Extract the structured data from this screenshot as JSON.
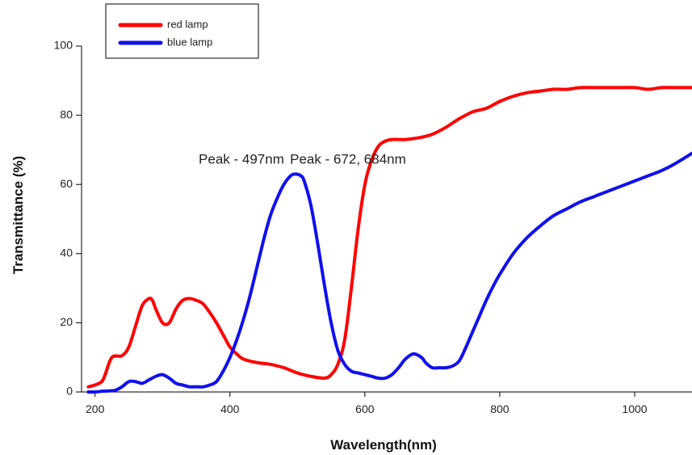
{
  "chart_data": {
    "type": "line",
    "xlabel": "Wavelength(nm)",
    "ylabel": "Transmittance (%)",
    "xlim": [
      180,
      1085
    ],
    "ylim": [
      0,
      100
    ],
    "x_ticks": [
      200,
      400,
      600,
      800,
      1000
    ],
    "y_ticks": [
      0,
      20,
      40,
      60,
      80,
      100
    ],
    "grid": false,
    "legend_position": "top-left",
    "annotations": [
      {
        "text": "Peak - 497nm",
        "x": 417,
        "y": 66
      },
      {
        "text": "Peak - 672, 684nm",
        "x": 575,
        "y": 66
      }
    ],
    "series": [
      {
        "name": "red lamp",
        "color": "#ff0000",
        "x": [
          190,
          200,
          210,
          215,
          225,
          240,
          250,
          260,
          270,
          280,
          285,
          290,
          300,
          310,
          320,
          330,
          340,
          350,
          360,
          370,
          380,
          390,
          400,
          410,
          420,
          440,
          460,
          480,
          500,
          520,
          540,
          550,
          560,
          570,
          580,
          590,
          600,
          610,
          620,
          630,
          640,
          650,
          660,
          680,
          700,
          720,
          740,
          760,
          780,
          800,
          820,
          840,
          860,
          880,
          900,
          920,
          940,
          960,
          980,
          1000,
          1020,
          1040,
          1060,
          1085
        ],
        "y": [
          1.5,
          2,
          3,
          5,
          10,
          10.5,
          13,
          19,
          25,
          27,
          26.5,
          24,
          20,
          20,
          24,
          26.5,
          27,
          26.5,
          25.5,
          23,
          20,
          16.5,
          13,
          11,
          9.5,
          8.5,
          8,
          7,
          5.5,
          4.5,
          4,
          5,
          8,
          15,
          30,
          47,
          60,
          67,
          71,
          72.5,
          73,
          73,
          73,
          73.5,
          74.5,
          76.5,
          79,
          81,
          82,
          84,
          85.5,
          86.5,
          87,
          87.5,
          87.5,
          88,
          88,
          88,
          88,
          88,
          87.5,
          88,
          88,
          88
        ]
      },
      {
        "name": "blue lamp",
        "color": "#1010ee",
        "x": [
          190,
          200,
          210,
          220,
          230,
          240,
          250,
          260,
          270,
          280,
          290,
          300,
          310,
          320,
          330,
          340,
          350,
          360,
          370,
          380,
          390,
          400,
          410,
          420,
          430,
          440,
          450,
          460,
          470,
          480,
          490,
          497,
          505,
          510,
          520,
          530,
          540,
          550,
          560,
          570,
          580,
          590,
          600,
          610,
          620,
          630,
          640,
          650,
          660,
          672,
          684,
          690,
          700,
          710,
          720,
          730,
          740,
          750,
          760,
          770,
          780,
          790,
          800,
          820,
          840,
          860,
          880,
          900,
          920,
          940,
          960,
          980,
          1000,
          1020,
          1040,
          1060,
          1085
        ],
        "y": [
          0,
          0,
          0.2,
          0.3,
          0.5,
          1.5,
          3,
          3,
          2.5,
          3.5,
          4.5,
          5,
          4,
          2.5,
          2,
          1.5,
          1.5,
          1.5,
          2,
          3,
          6,
          10,
          15,
          21,
          28,
          36,
          44,
          51,
          56,
          60,
          62.5,
          63,
          62.5,
          61,
          54,
          43,
          31,
          20,
          12,
          8,
          6,
          5.5,
          5,
          4.5,
          4,
          4,
          5,
          7,
          9.5,
          11,
          10,
          8.5,
          7,
          7,
          7,
          7.5,
          9,
          13,
          17.5,
          22,
          26.5,
          30.5,
          34,
          40,
          44.5,
          48,
          51,
          53,
          55,
          56.5,
          58,
          59.5,
          61,
          62.5,
          64,
          66,
          69
        ]
      }
    ]
  }
}
